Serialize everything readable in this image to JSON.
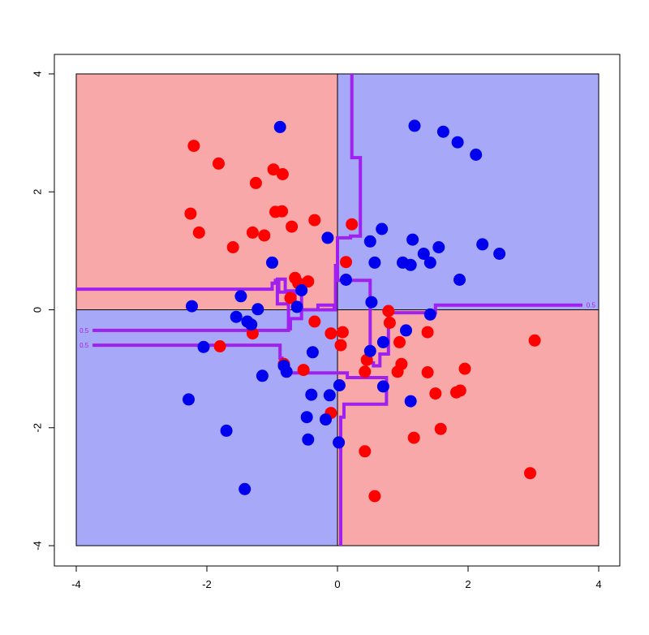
{
  "chart_data": {
    "type": "scatter",
    "title": "",
    "xlabel": "",
    "ylabel": "",
    "xlim": [
      -4,
      4
    ],
    "ylim": [
      -4,
      4
    ],
    "xticks": [
      -4,
      -2,
      0,
      2,
      4
    ],
    "yticks": [
      -4,
      -2,
      0,
      2,
      4
    ],
    "grid": false,
    "legend": "none",
    "colors": {
      "red_region": "#f8a8a8",
      "blue_region": "#a8a8f8",
      "red_point": "#ff0000",
      "blue_point": "#0000ee",
      "boundary": "#a020f0"
    },
    "regions": [
      {
        "class": "red",
        "x": [
          -4,
          0
        ],
        "y": [
          0,
          4
        ]
      },
      {
        "class": "blue",
        "x": [
          0,
          4
        ],
        "y": [
          0,
          4
        ]
      },
      {
        "class": "blue",
        "x": [
          -4,
          0
        ],
        "y": [
          -4,
          0
        ]
      },
      {
        "class": "red",
        "x": [
          0,
          4
        ],
        "y": [
          -4,
          0
        ]
      }
    ],
    "series": [
      {
        "class": "red",
        "points": [
          [
            -2.2,
            2.78
          ],
          [
            -1.82,
            2.48
          ],
          [
            -1.25,
            2.15
          ],
          [
            -0.98,
            2.38
          ],
          [
            -0.84,
            2.3
          ],
          [
            -2.25,
            1.63
          ],
          [
            -2.12,
            1.31
          ],
          [
            -1.6,
            1.06
          ],
          [
            -1.3,
            1.31
          ],
          [
            -1.12,
            1.26
          ],
          [
            -0.95,
            1.66
          ],
          [
            -0.85,
            1.67
          ],
          [
            -0.7,
            1.41
          ],
          [
            -0.35,
            1.52
          ],
          [
            0.22,
            1.45
          ],
          [
            0.13,
            0.81
          ],
          [
            -0.65,
            0.54
          ],
          [
            -0.6,
            0.45
          ],
          [
            -0.45,
            0.48
          ],
          [
            -0.72,
            0.2
          ],
          [
            -0.35,
            -0.2
          ],
          [
            -0.1,
            -0.4
          ],
          [
            0.08,
            -0.38
          ],
          [
            0.05,
            -0.6
          ],
          [
            -1.3,
            -0.4
          ],
          [
            -1.8,
            -0.62
          ],
          [
            -0.82,
            -0.92
          ],
          [
            -0.52,
            -1.02
          ],
          [
            0.45,
            -0.85
          ],
          [
            0.42,
            -1.05
          ],
          [
            0.8,
            -0.22
          ],
          [
            0.78,
            -0.02
          ],
          [
            0.95,
            -0.55
          ],
          [
            1.38,
            -0.38
          ],
          [
            0.98,
            -0.92
          ],
          [
            0.92,
            -1.05
          ],
          [
            1.38,
            -1.06
          ],
          [
            1.95,
            -1.0
          ],
          [
            1.5,
            -1.42
          ],
          [
            1.82,
            -1.4
          ],
          [
            1.88,
            -1.37
          ],
          [
            -0.1,
            -1.75
          ],
          [
            1.58,
            -2.02
          ],
          [
            1.17,
            -2.17
          ],
          [
            0.42,
            -2.4
          ],
          [
            2.95,
            -2.77
          ],
          [
            0.57,
            -3.16
          ],
          [
            3.02,
            -0.52
          ]
        ]
      },
      {
        "class": "blue",
        "points": [
          [
            -0.88,
            3.1
          ],
          [
            1.18,
            3.12
          ],
          [
            1.62,
            3.02
          ],
          [
            1.84,
            2.84
          ],
          [
            2.12,
            2.63
          ],
          [
            0.68,
            1.37
          ],
          [
            0.5,
            1.16
          ],
          [
            1.15,
            1.19
          ],
          [
            1.55,
            1.06
          ],
          [
            2.22,
            1.11
          ],
          [
            2.48,
            0.95
          ],
          [
            1.32,
            0.95
          ],
          [
            1.0,
            0.8
          ],
          [
            1.12,
            0.76
          ],
          [
            1.42,
            0.8
          ],
          [
            0.57,
            0.8
          ],
          [
            1.87,
            0.51
          ],
          [
            -1.0,
            0.8
          ],
          [
            -0.15,
            1.22
          ],
          [
            0.13,
            0.51
          ],
          [
            -1.48,
            0.23
          ],
          [
            -2.23,
            0.06
          ],
          [
            -1.22,
            0.01
          ],
          [
            -1.55,
            -0.12
          ],
          [
            -1.38,
            -0.2
          ],
          [
            -1.32,
            -0.25
          ],
          [
            -0.62,
            0.05
          ],
          [
            -0.55,
            0.33
          ],
          [
            0.52,
            0.13
          ],
          [
            -2.05,
            -0.63
          ],
          [
            1.42,
            -0.08
          ],
          [
            0.7,
            -0.55
          ],
          [
            0.5,
            -0.7
          ],
          [
            -0.38,
            -0.72
          ],
          [
            -1.15,
            -1.12
          ],
          [
            -0.78,
            -1.05
          ],
          [
            -0.82,
            -0.95
          ],
          [
            -2.28,
            -1.52
          ],
          [
            -0.4,
            -1.44
          ],
          [
            -0.12,
            -1.45
          ],
          [
            0.03,
            -1.28
          ],
          [
            0.7,
            -1.3
          ],
          [
            1.12,
            -1.55
          ],
          [
            -0.47,
            -1.82
          ],
          [
            -0.18,
            -1.86
          ],
          [
            -1.7,
            -2.05
          ],
          [
            -0.45,
            -2.2
          ],
          [
            0.02,
            -2.25
          ],
          [
            -1.42,
            -3.04
          ],
          [
            1.05,
            -0.35
          ]
        ]
      }
    ],
    "boundary_lines": [
      {
        "label": "0.5",
        "label_pos": [
          -3.88,
          -0.35
        ],
        "points": [
          [
            -3.75,
            -0.35
          ],
          [
            -0.75,
            -0.35
          ],
          [
            -0.75,
            0.1
          ],
          [
            -0.92,
            0.1
          ],
          [
            -0.92,
            0.52
          ],
          [
            -0.8,
            0.52
          ],
          [
            -0.8,
            0.32
          ],
          [
            -0.55,
            0.32
          ],
          [
            -0.55,
            -0.15
          ],
          [
            -0.72,
            -0.15
          ],
          [
            -0.72,
            -0.35
          ]
        ]
      },
      {
        "label": "0.5",
        "label_pos": [
          -3.88,
          -0.6
        ],
        "points": [
          [
            -3.75,
            -0.6
          ],
          [
            -0.88,
            -0.6
          ],
          [
            -0.88,
            -0.82
          ],
          [
            -0.85,
            -0.82
          ],
          [
            -0.85,
            -0.98
          ],
          [
            -0.75,
            -0.98
          ],
          [
            -0.75,
            -1.07
          ],
          [
            0.15,
            -1.07
          ],
          [
            0.15,
            -1.15
          ],
          [
            0.75,
            -1.15
          ],
          [
            0.75,
            -1.6
          ],
          [
            0.1,
            -1.6
          ],
          [
            0.1,
            -1.82
          ],
          [
            0.05,
            -1.82
          ],
          [
            0.05,
            -4.0
          ]
        ]
      },
      {
        "label": "0.5",
        "label_pos": [
          3.88,
          0.08
        ],
        "points": [
          [
            -4.0,
            0.35
          ],
          [
            -1.0,
            0.35
          ],
          [
            -1.0,
            0.45
          ],
          [
            -0.95,
            0.45
          ],
          [
            -0.95,
            0.5
          ],
          [
            -0.9,
            0.5
          ],
          [
            -0.9,
            0.3
          ],
          [
            -0.65,
            0.3
          ],
          [
            -0.65,
            0.0
          ],
          [
            -0.05,
            0.0
          ],
          [
            -0.05,
            0.08
          ],
          [
            -0.3,
            0.08
          ],
          [
            -0.3,
            0.0
          ],
          [
            -0.03,
            0.0
          ],
          [
            -0.03,
            0.75
          ],
          [
            0.0,
            0.75
          ],
          [
            0.0,
            0.5
          ],
          [
            0.5,
            0.5
          ],
          [
            0.5,
            0.3
          ],
          [
            0.5,
            0.3
          ],
          [
            0.5,
            0.0
          ],
          [
            0.5,
            -0.45
          ],
          [
            0.5,
            -0.9
          ],
          [
            0.55,
            -0.9
          ],
          [
            0.55,
            -0.95
          ],
          [
            0.65,
            -0.95
          ],
          [
            0.65,
            -0.75
          ],
          [
            0.78,
            -0.75
          ],
          [
            0.78,
            -0.05
          ],
          [
            1.5,
            -0.05
          ],
          [
            1.5,
            0.08
          ],
          [
            3.75,
            0.08
          ]
        ]
      },
      {
        "label": "",
        "label_pos": null,
        "points": [
          [
            0.22,
            4.0
          ],
          [
            0.22,
            2.58
          ],
          [
            0.35,
            2.58
          ],
          [
            0.35,
            1.25
          ],
          [
            0.2,
            1.25
          ],
          [
            0.2,
            1.22
          ],
          [
            0.0,
            1.22
          ],
          [
            0.0,
            0.75
          ]
        ]
      }
    ],
    "contour_label_color": "#a020f0",
    "extra_red_point_labeled": []
  }
}
